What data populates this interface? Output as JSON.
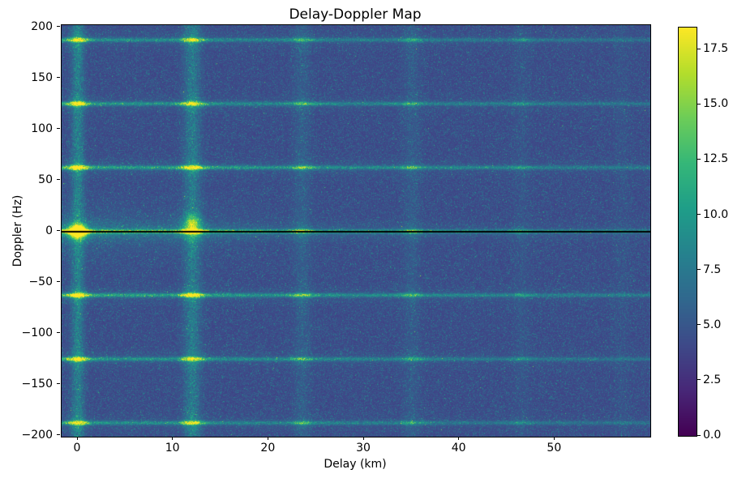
{
  "chart_data": {
    "type": "heatmap",
    "title": "Delay-Doppler Map",
    "xlabel": "Delay (km)",
    "ylabel": "Doppler (Hz)",
    "colormap": "viridis",
    "x_range": [
      -1.7,
      60.0
    ],
    "y_range": [
      -201,
      202
    ],
    "value_range": [
      0,
      18.5
    ],
    "x_ticks": [
      0,
      10,
      20,
      30,
      40,
      50
    ],
    "x_tick_labels": [
      "0",
      "10",
      "20",
      "30",
      "40",
      "50"
    ],
    "y_ticks": [
      200,
      150,
      100,
      50,
      0,
      -50,
      -100,
      -150,
      -200
    ],
    "y_tick_labels": [
      "200",
      "150",
      "100",
      "50",
      "0",
      "−50",
      "−100",
      "−150",
      "−200"
    ],
    "colorbar_ticks": [
      0,
      2.5,
      5,
      7.5,
      10,
      12.5,
      15,
      17.5
    ],
    "colorbar_tick_labels": [
      "0.0",
      "2.5",
      "5.0",
      "7.5",
      "10.0",
      "12.5",
      "15.0",
      "17.5"
    ],
    "legend_position": "right-colorbar",
    "grid": false,
    "background_level": 4.6,
    "features": {
      "peak": {
        "delay": 0,
        "doppler": 0,
        "value": 18.5
      },
      "secondary_peak": {
        "delay": 12,
        "doppler": 8,
        "value": 7
      },
      "zero_doppler_marker": {
        "doppler": 0,
        "color": "#000000"
      },
      "horizontal_lines": [
        {
          "doppler": 0,
          "amp": 8.5
        },
        {
          "doppler": 62.5,
          "amp": 6.0
        },
        {
          "doppler": -62.5,
          "amp": 6.0
        },
        {
          "doppler": 125,
          "amp": 5.0
        },
        {
          "doppler": -125,
          "amp": 5.0
        },
        {
          "doppler": 187.5,
          "amp": 4.5
        },
        {
          "doppler": -187.5,
          "amp": 4.5
        }
      ],
      "vertical_lines": [
        {
          "delay": 0,
          "amp": 3.5,
          "w": 0.45
        },
        {
          "delay": 12,
          "amp": 3.0,
          "w": 0.6
        },
        {
          "delay": 23.5,
          "amp": 1.1,
          "w": 0.6
        },
        {
          "delay": 35,
          "amp": 0.9,
          "w": 0.6
        },
        {
          "delay": 46.5,
          "amp": 0.5,
          "w": 0.6
        },
        {
          "delay": 57,
          "amp": 0.4,
          "w": 0.6
        }
      ],
      "delay_gain_bumps": [
        {
          "d": 0,
          "g": 2.5,
          "w": 0.7
        },
        {
          "d": 12,
          "g": 2.0,
          "w": 0.8
        },
        {
          "d": 23.5,
          "g": 0.8,
          "w": 0.8
        },
        {
          "d": 35,
          "g": 0.6,
          "w": 0.8
        },
        {
          "d": 46.5,
          "g": 0.3,
          "w": 0.8
        }
      ]
    },
    "viridis_stops": [
      [
        68,
        1,
        84
      ],
      [
        72,
        40,
        120
      ],
      [
        62,
        74,
        137
      ],
      [
        49,
        104,
        142
      ],
      [
        38,
        130,
        142
      ],
      [
        31,
        158,
        137
      ],
      [
        53,
        183,
        121
      ],
      [
        109,
        205,
        89
      ],
      [
        180,
        222,
        44
      ],
      [
        253,
        231,
        37
      ]
    ]
  }
}
